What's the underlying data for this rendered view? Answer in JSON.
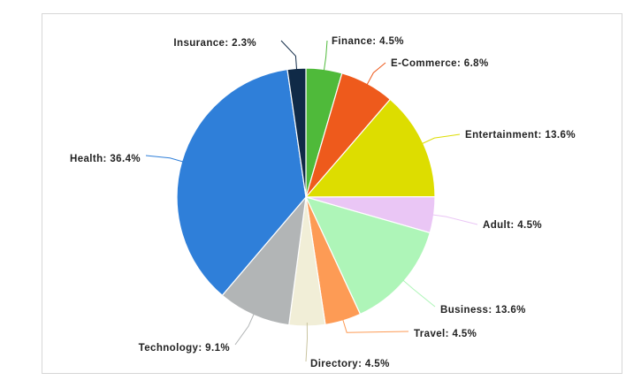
{
  "chart_data": {
    "type": "pie",
    "title": "",
    "start_angle_deg": 0,
    "direction": "clockwise",
    "slices": [
      {
        "label": "Finance",
        "value": 4.5,
        "display": "Finance: 4.5%",
        "color": "#4fba3a"
      },
      {
        "label": "E-Commerce",
        "value": 6.8,
        "display": "E-Commerce: 6.8%",
        "color": "#ee5a1c"
      },
      {
        "label": "Entertainment",
        "value": 13.6,
        "display": "Entertainment: 13.6%",
        "color": "#dddd00"
      },
      {
        "label": "Adult",
        "value": 4.5,
        "display": "Adult: 4.5%",
        "color": "#eac6f5"
      },
      {
        "label": "Business",
        "value": 13.6,
        "display": "Business: 13.6%",
        "color": "#aef5b8"
      },
      {
        "label": "Travel",
        "value": 4.5,
        "display": "Travel: 4.5%",
        "color": "#fd9b55"
      },
      {
        "label": "Directory",
        "value": 4.5,
        "display": "Directory: 4.5%",
        "color": "#f1eed7"
      },
      {
        "label": "Technology",
        "value": 9.1,
        "display": "Technology: 9.1%",
        "color": "#b2b5b6"
      },
      {
        "label": "Health",
        "value": 36.4,
        "display": "Health: 36.4%",
        "color": "#2f7fd9"
      },
      {
        "label": "Insurance",
        "value": 2.3,
        "display": "Insurance: 2.3%",
        "color": "#102a47"
      }
    ]
  }
}
